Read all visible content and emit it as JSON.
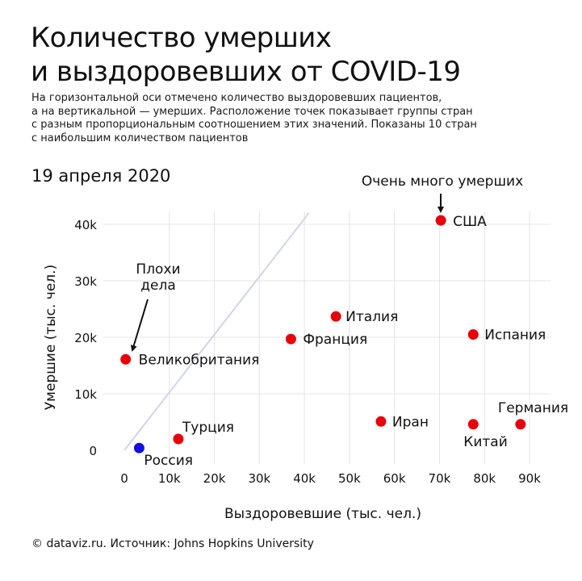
{
  "header": {
    "title_lines": [
      "Количество умерших",
      "и выздоровевших от COVID-19"
    ],
    "subtitle_lines": [
      "На горизонтальной оси отмечено количество выздоровевших пациентов,",
      "а на вертикальной — умерших. Расположение точек показывает группы стран",
      "с разным пропорциональным соотношением этих значений. Показаны 10 стран",
      "с наибольшим количеством пациентов"
    ],
    "date": "19 апреля 2020"
  },
  "footer": {
    "source": "© dataviz.ru. Источник: Johns Hopkins University"
  },
  "chart_data": {
    "type": "scatter",
    "xlabel": "Выздоровевшие (тыс. чел.)",
    "ylabel": "Умершие (тыс. чел.)",
    "xlim": [
      0,
      90000
    ],
    "ylim": [
      0,
      40000
    ],
    "x_ticks": [
      0,
      10000,
      20000,
      30000,
      40000,
      50000,
      60000,
      70000,
      80000,
      90000
    ],
    "x_tick_labels": [
      "0",
      "10k",
      "20k",
      "30k",
      "40k",
      "50k",
      "60k",
      "70k",
      "80k",
      "90k"
    ],
    "y_ticks": [
      0,
      10000,
      20000,
      30000,
      40000
    ],
    "y_tick_labels": [
      "0",
      "10k",
      "20k",
      "30k",
      "40k"
    ],
    "grid": true,
    "reference_line": {
      "from": [
        0,
        0
      ],
      "to": [
        41000,
        42000
      ],
      "color": "#cfd6e6"
    },
    "points": [
      {
        "label": "США",
        "x": 70300,
        "y": 40700,
        "color": "#e8000b"
      },
      {
        "label": "Италия",
        "x": 47000,
        "y": 23700,
        "color": "#e8000b"
      },
      {
        "label": "Испания",
        "x": 77500,
        "y": 20500,
        "color": "#e8000b"
      },
      {
        "label": "Франция",
        "x": 37000,
        "y": 19700,
        "color": "#e8000b"
      },
      {
        "label": "Великобритания",
        "x": 300,
        "y": 16100,
        "color": "#e8000b"
      },
      {
        "label": "Иран",
        "x": 57000,
        "y": 5100,
        "color": "#e8000b"
      },
      {
        "label": "Китай",
        "x": 77500,
        "y": 4600,
        "color": "#e8000b"
      },
      {
        "label": "Германия",
        "x": 88000,
        "y": 4600,
        "color": "#e8000b"
      },
      {
        "label": "Турция",
        "x": 12000,
        "y": 2000,
        "color": "#e8000b"
      },
      {
        "label": "Россия",
        "x": 3300,
        "y": 400,
        "color": "#1010e0"
      }
    ],
    "annotations": [
      {
        "text_lines": [
          "Очень много умерших"
        ],
        "target": "США"
      },
      {
        "text_lines": [
          "Плохи",
          "дела"
        ],
        "target": "Великобритания"
      }
    ]
  }
}
